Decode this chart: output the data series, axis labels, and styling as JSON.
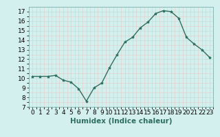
{
  "x": [
    0,
    1,
    2,
    3,
    4,
    5,
    6,
    7,
    8,
    9,
    10,
    11,
    12,
    13,
    14,
    15,
    16,
    17,
    18,
    19,
    20,
    21,
    22,
    23
  ],
  "y": [
    10.2,
    10.2,
    10.2,
    10.3,
    9.8,
    9.6,
    8.9,
    7.6,
    9.0,
    9.5,
    11.1,
    12.5,
    13.8,
    14.3,
    15.3,
    15.9,
    16.8,
    17.1,
    17.0,
    16.3,
    14.3,
    13.6,
    13.0,
    12.2
  ],
  "line_color": "#2d6e5e",
  "marker": "*",
  "marker_size": 3,
  "bg_color": "#d4f0ee",
  "grid_color": "#c0deda",
  "xlabel": "Humidex (Indice chaleur)",
  "xlim": [
    -0.5,
    23.5
  ],
  "ylim": [
    7,
    17.5
  ],
  "yticks": [
    7,
    8,
    9,
    10,
    11,
    12,
    13,
    14,
    15,
    16,
    17
  ],
  "xticks": [
    0,
    1,
    2,
    3,
    4,
    5,
    6,
    7,
    8,
    9,
    10,
    11,
    12,
    13,
    14,
    15,
    16,
    17,
    18,
    19,
    20,
    21,
    22,
    23
  ],
  "tick_fontsize": 6.5,
  "xlabel_fontsize": 7.5
}
